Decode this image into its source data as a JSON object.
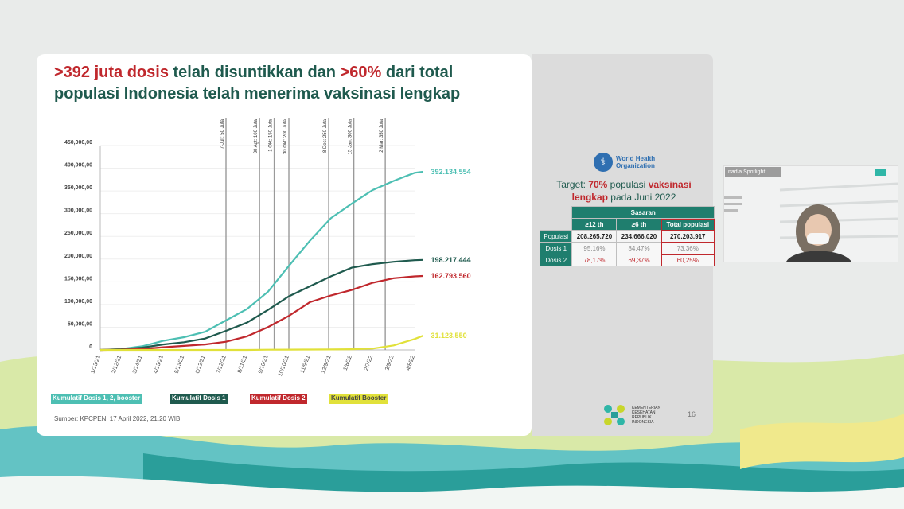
{
  "headline": {
    "part1_red": ">392 juta dosis",
    "part2": " telah disuntikkan dan ",
    "part3_red": ">60%",
    "part4": " dari total populasi Indonesia telah menerima vaksinasi lengkap"
  },
  "chart_data": {
    "type": "line",
    "title": "",
    "xlabel": "",
    "ylabel": "",
    "ylim": [
      0,
      450000000
    ],
    "y_ticks": [
      "0",
      "50,000,00",
      "100,000,00",
      "150,000,00",
      "200,000,00",
      "250,000,00",
      "300,000,00",
      "350,000,00",
      "400,000,00",
      "450,000,00"
    ],
    "x_ticks": [
      "1/13/21",
      "2/12/21",
      "3/14/21",
      "4/13/21",
      "5/13/21",
      "6/12/21",
      "7/12/21",
      "8/11/21",
      "9/10/21",
      "10/10/21",
      "11/9/21",
      "12/9/21",
      "1/8/22",
      "2/7/22",
      "3/9/22",
      "4/8/22"
    ],
    "events": [
      {
        "x": 6,
        "label": "7-Juli: 50 Juta"
      },
      {
        "x": 7.6,
        "label": "30 Agt: 100 Juta"
      },
      {
        "x": 8.3,
        "label": "1 Okt: 150 Juta"
      },
      {
        "x": 9,
        "label": "30 Okt: 200 Juta"
      },
      {
        "x": 10.9,
        "label": "8 Des: 250 Juta"
      },
      {
        "x": 12.1,
        "label": "15 Jan: 300 Juta"
      },
      {
        "x": 13.6,
        "label": "2 Mar: 350 Juta"
      }
    ],
    "series": [
      {
        "name": "Kumulatif Dosis 1, 2, booster",
        "color": "#4dbfb3",
        "end_label": "392.134.554",
        "x": [
          0,
          1,
          2,
          3,
          4,
          5,
          6,
          7,
          8,
          9,
          10,
          11,
          12,
          13,
          14,
          15,
          15.4
        ],
        "y": [
          0,
          2000000,
          8000000,
          20000000,
          28000000,
          40000000,
          65000000,
          90000000,
          128000000,
          185000000,
          240000000,
          290000000,
          322000000,
          352000000,
          372000000,
          390000000,
          392134554
        ]
      },
      {
        "name": "Kumulatif Dosis 1",
        "color": "#1f5a4e",
        "end_label": "198.217.444",
        "x": [
          0,
          1,
          2,
          3,
          4,
          5,
          6,
          7,
          8,
          9,
          10,
          11,
          12,
          13,
          14,
          15,
          15.4
        ],
        "y": [
          0,
          1500000,
          5000000,
          12000000,
          17000000,
          25000000,
          42000000,
          60000000,
          88000000,
          118000000,
          140000000,
          162000000,
          181000000,
          189000000,
          194000000,
          197500000,
          198217444
        ]
      },
      {
        "name": "Kumulatif Dosis 2",
        "color": "#c0282d",
        "end_label": "162.793.560",
        "x": [
          0,
          1,
          2,
          3,
          4,
          5,
          6,
          7,
          8,
          9,
          10,
          11,
          12,
          13,
          14,
          15,
          15.4
        ],
        "y": [
          0,
          500000,
          2000000,
          6000000,
          9000000,
          12000000,
          18000000,
          30000000,
          50000000,
          75000000,
          105000000,
          120000000,
          132000000,
          148000000,
          158000000,
          162000000,
          162793560
        ]
      },
      {
        "name": "Kumulatif Booster",
        "color": "#e1e13a",
        "end_label": "31.123.550",
        "x": [
          0,
          1,
          2,
          3,
          4,
          5,
          6,
          7,
          8,
          9,
          10,
          11,
          12,
          13,
          14,
          15,
          15.4
        ],
        "y": [
          0,
          0,
          0,
          0,
          0,
          0,
          0,
          0,
          500000,
          700000,
          800000,
          1000000,
          1500000,
          3000000,
          10000000,
          24000000,
          31123550
        ]
      }
    ]
  },
  "legend": [
    {
      "label": "Kumulatif Dosis 1, 2, booster",
      "color": "#4dbfb3"
    },
    {
      "label": "Kumulatif Dosis 1",
      "color": "#1f5a4e"
    },
    {
      "label": "Kumulatif Dosis 2",
      "color": "#c0282d"
    },
    {
      "label": "Kumulatif Booster",
      "color": "#e1e13a"
    }
  ],
  "source": "Sumber: KPCPEN, 17 April 2022, 21.20 WIB",
  "who": {
    "line1": "World Health",
    "line2": "Organization"
  },
  "target": {
    "t1": "Target: ",
    "t2_red": "70%",
    "t3": " populasi ",
    "t4_red": "vaksinasi lengkap",
    "t5": " pada Juni 2022"
  },
  "table": {
    "header": "Sasaran",
    "col1": "≥12 th",
    "col2": "≥6 th",
    "col3": "Total populasi",
    "rows": [
      {
        "label": "Populasi",
        "v1": "208.265.720",
        "v2": "234.666.020",
        "v3": "270.203.917"
      },
      {
        "label": "Dosis 1",
        "v1": "95,16%",
        "v2": "84,47%",
        "v3": "73,36%"
      },
      {
        "label": "Dosis 2",
        "v1": "78,17%",
        "v2": "69,37%",
        "v3": "60,25%"
      }
    ]
  },
  "kemenkes": {
    "l1": "KEMENTERIAN",
    "l2": "KESEHATAN",
    "l3": "REPUBLIK",
    "l4": "INDONESIA"
  },
  "page_number": "16",
  "video": {
    "name": "nadia Spotlight"
  }
}
